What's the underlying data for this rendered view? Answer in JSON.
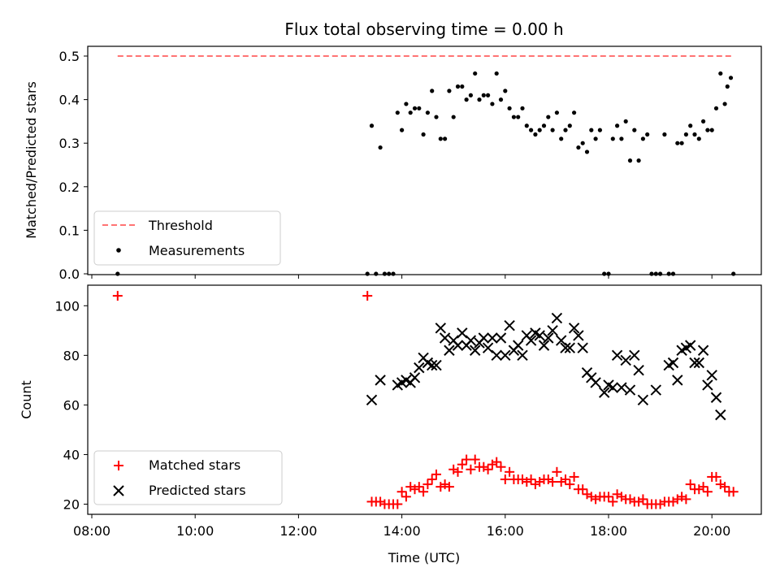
{
  "chart_data": [
    {
      "type": "scatter",
      "title": "Flux total observing time = 0.00 h",
      "xlabel": "",
      "ylabel": "Matched/Predicted stars",
      "ylim": [
        0,
        0.5
      ],
      "yticks": [
        "0.0",
        "0.1",
        "0.2",
        "0.3",
        "0.4",
        "0.5"
      ],
      "xlim": [
        "08:00",
        "21:00"
      ],
      "x_tick_labels_shown": false,
      "legend": {
        "position": "lower-left",
        "entries": [
          "Threshold",
          "Measurements"
        ]
      },
      "threshold": {
        "name": "Threshold",
        "value": 0.5,
        "x_start": "08:30",
        "x_end": "20:25",
        "color": "#ff7373",
        "style": "dashed"
      },
      "series": [
        {
          "name": "Measurements",
          "color": "#000000",
          "marker": "dot",
          "points": [
            [
              "08:30",
              0.0
            ],
            [
              "13:20",
              0.0
            ],
            [
              "13:25",
              0.34
            ],
            [
              "13:30",
              0.0
            ],
            [
              "13:35",
              0.29
            ],
            [
              "13:40",
              0.0
            ],
            [
              "13:45",
              0.0
            ],
            [
              "13:50",
              0.0
            ],
            [
              "13:55",
              0.37
            ],
            [
              "14:00",
              0.33
            ],
            [
              "14:05",
              0.39
            ],
            [
              "14:10",
              0.37
            ],
            [
              "14:15",
              0.38
            ],
            [
              "14:20",
              0.38
            ],
            [
              "14:25",
              0.32
            ],
            [
              "14:30",
              0.37
            ],
            [
              "14:35",
              0.42
            ],
            [
              "14:40",
              0.36
            ],
            [
              "14:45",
              0.31
            ],
            [
              "14:50",
              0.31
            ],
            [
              "14:55",
              0.42
            ],
            [
              "15:00",
              0.36
            ],
            [
              "15:05",
              0.43
            ],
            [
              "15:10",
              0.43
            ],
            [
              "15:15",
              0.4
            ],
            [
              "15:20",
              0.41
            ],
            [
              "15:25",
              0.46
            ],
            [
              "15:30",
              0.4
            ],
            [
              "15:35",
              0.41
            ],
            [
              "15:40",
              0.41
            ],
            [
              "15:45",
              0.39
            ],
            [
              "15:50",
              0.46
            ],
            [
              "15:55",
              0.4
            ],
            [
              "16:00",
              0.42
            ],
            [
              "16:05",
              0.38
            ],
            [
              "16:10",
              0.36
            ],
            [
              "16:15",
              0.36
            ],
            [
              "16:20",
              0.38
            ],
            [
              "16:25",
              0.34
            ],
            [
              "16:30",
              0.33
            ],
            [
              "16:35",
              0.32
            ],
            [
              "16:40",
              0.33
            ],
            [
              "16:45",
              0.34
            ],
            [
              "16:50",
              0.36
            ],
            [
              "16:55",
              0.33
            ],
            [
              "17:00",
              0.37
            ],
            [
              "17:05",
              0.31
            ],
            [
              "17:10",
              0.33
            ],
            [
              "17:15",
              0.34
            ],
            [
              "17:20",
              0.37
            ],
            [
              "17:25",
              0.29
            ],
            [
              "17:30",
              0.3
            ],
            [
              "17:35",
              0.28
            ],
            [
              "17:40",
              0.33
            ],
            [
              "17:45",
              0.31
            ],
            [
              "17:50",
              0.33
            ],
            [
              "17:55",
              0.0
            ],
            [
              "18:00",
              0.0
            ],
            [
              "18:05",
              0.31
            ],
            [
              "18:10",
              0.34
            ],
            [
              "18:15",
              0.31
            ],
            [
              "18:20",
              0.35
            ],
            [
              "18:25",
              0.26
            ],
            [
              "18:30",
              0.33
            ],
            [
              "18:35",
              0.26
            ],
            [
              "18:40",
              0.31
            ],
            [
              "18:45",
              0.32
            ],
            [
              "18:50",
              0.0
            ],
            [
              "18:55",
              0.0
            ],
            [
              "19:00",
              0.0
            ],
            [
              "19:05",
              0.32
            ],
            [
              "19:10",
              0.0
            ],
            [
              "19:15",
              0.0
            ],
            [
              "19:20",
              0.3
            ],
            [
              "19:25",
              0.3
            ],
            [
              "19:30",
              0.32
            ],
            [
              "19:35",
              0.34
            ],
            [
              "19:40",
              0.32
            ],
            [
              "19:45",
              0.31
            ],
            [
              "19:50",
              0.35
            ],
            [
              "19:55",
              0.33
            ],
            [
              "20:00",
              0.33
            ],
            [
              "20:05",
              0.38
            ],
            [
              "20:10",
              0.46
            ],
            [
              "20:15",
              0.39
            ],
            [
              "20:18",
              0.43
            ],
            [
              "20:22",
              0.45
            ],
            [
              "20:25",
              0.0
            ]
          ]
        }
      ]
    },
    {
      "type": "scatter",
      "xlabel": "Time (UTC)",
      "ylabel": "Count",
      "ylim": [
        15,
        108
      ],
      "yticks": [
        "20",
        "40",
        "60",
        "80",
        "100"
      ],
      "xlim": [
        "08:00",
        "21:00"
      ],
      "xticks": [
        "08:00",
        "10:00",
        "12:00",
        "14:00",
        "16:00",
        "18:00",
        "20:00"
      ],
      "legend": {
        "position": "lower-left",
        "entries": [
          "Matched stars",
          "Predicted stars"
        ]
      },
      "series": [
        {
          "name": "Matched stars",
          "color": "#ff0000",
          "marker": "plus",
          "points": [
            [
              "08:30",
              104
            ],
            [
              "13:20",
              104
            ],
            [
              "13:25",
              21
            ],
            [
              "13:30",
              21
            ],
            [
              "13:35",
              21
            ],
            [
              "13:40",
              20
            ],
            [
              "13:45",
              20
            ],
            [
              "13:50",
              20
            ],
            [
              "13:55",
              20
            ],
            [
              "14:00",
              25
            ],
            [
              "14:05",
              23
            ],
            [
              "14:10",
              27
            ],
            [
              "14:15",
              26
            ],
            [
              "14:20",
              27
            ],
            [
              "14:25",
              25
            ],
            [
              "14:30",
              28
            ],
            [
              "14:35",
              30
            ],
            [
              "14:40",
              32
            ],
            [
              "14:45",
              27
            ],
            [
              "14:50",
              28
            ],
            [
              "14:55",
              27
            ],
            [
              "15:00",
              34
            ],
            [
              "15:05",
              33
            ],
            [
              "15:10",
              36
            ],
            [
              "15:15",
              38
            ],
            [
              "15:20",
              34
            ],
            [
              "15:25",
              38
            ],
            [
              "15:30",
              35
            ],
            [
              "15:35",
              35
            ],
            [
              "15:40",
              34
            ],
            [
              "15:45",
              36
            ],
            [
              "15:50",
              37
            ],
            [
              "15:55",
              35
            ],
            [
              "16:00",
              30
            ],
            [
              "16:05",
              33
            ],
            [
              "16:10",
              30
            ],
            [
              "16:15",
              30
            ],
            [
              "16:20",
              30
            ],
            [
              "16:25",
              29
            ],
            [
              "16:30",
              30
            ],
            [
              "16:35",
              28
            ],
            [
              "16:40",
              29
            ],
            [
              "16:45",
              30
            ],
            [
              "16:50",
              30
            ],
            [
              "16:55",
              29
            ],
            [
              "17:00",
              33
            ],
            [
              "17:05",
              29
            ],
            [
              "17:10",
              30
            ],
            [
              "17:15",
              28
            ],
            [
              "17:20",
              31
            ],
            [
              "17:25",
              26
            ],
            [
              "17:30",
              26
            ],
            [
              "17:35",
              24
            ],
            [
              "17:40",
              23
            ],
            [
              "17:45",
              22
            ],
            [
              "17:50",
              23
            ],
            [
              "17:55",
              23
            ],
            [
              "18:00",
              23
            ],
            [
              "18:05",
              21
            ],
            [
              "18:10",
              24
            ],
            [
              "18:15",
              23
            ],
            [
              "18:20",
              22
            ],
            [
              "18:25",
              22
            ],
            [
              "18:30",
              21
            ],
            [
              "18:35",
              21
            ],
            [
              "18:40",
              22
            ],
            [
              "18:45",
              20
            ],
            [
              "18:50",
              20
            ],
            [
              "18:55",
              20
            ],
            [
              "19:00",
              20
            ],
            [
              "19:05",
              21
            ],
            [
              "19:10",
              21
            ],
            [
              "19:15",
              21
            ],
            [
              "19:20",
              22
            ],
            [
              "19:25",
              23
            ],
            [
              "19:30",
              22
            ],
            [
              "19:35",
              28
            ],
            [
              "19:40",
              26
            ],
            [
              "19:45",
              26
            ],
            [
              "19:50",
              27
            ],
            [
              "19:55",
              25
            ],
            [
              "20:00",
              31
            ],
            [
              "20:05",
              31
            ],
            [
              "20:10",
              28
            ],
            [
              "20:15",
              27
            ],
            [
              "20:20",
              25
            ],
            [
              "20:25",
              25
            ]
          ]
        },
        {
          "name": "Predicted stars",
          "color": "#000000",
          "marker": "x",
          "points": [
            [
              "13:25",
              62
            ],
            [
              "13:35",
              70
            ],
            [
              "13:55",
              68
            ],
            [
              "14:00",
              69
            ],
            [
              "14:05",
              70
            ],
            [
              "14:10",
              69
            ],
            [
              "14:15",
              71
            ],
            [
              "14:20",
              75
            ],
            [
              "14:25",
              79
            ],
            [
              "14:30",
              77
            ],
            [
              "14:35",
              76
            ],
            [
              "14:40",
              76
            ],
            [
              "14:45",
              91
            ],
            [
              "14:50",
              87
            ],
            [
              "14:55",
              82
            ],
            [
              "15:00",
              86
            ],
            [
              "15:05",
              84
            ],
            [
              "15:10",
              89
            ],
            [
              "15:15",
              84
            ],
            [
              "15:20",
              86
            ],
            [
              "15:25",
              82
            ],
            [
              "15:30",
              85
            ],
            [
              "15:35",
              87
            ],
            [
              "15:40",
              83
            ],
            [
              "15:45",
              87
            ],
            [
              "15:50",
              80
            ],
            [
              "15:55",
              87
            ],
            [
              "16:00",
              80
            ],
            [
              "16:05",
              92
            ],
            [
              "16:10",
              82
            ],
            [
              "16:15",
              84
            ],
            [
              "16:20",
              80
            ],
            [
              "16:25",
              88
            ],
            [
              "16:30",
              86
            ],
            [
              "16:35",
              89
            ],
            [
              "16:40",
              88
            ],
            [
              "16:45",
              84
            ],
            [
              "16:50",
              87
            ],
            [
              "16:55",
              90
            ],
            [
              "17:00",
              95
            ],
            [
              "17:05",
              86
            ],
            [
              "17:10",
              83
            ],
            [
              "17:15",
              83
            ],
            [
              "17:20",
              91
            ],
            [
              "17:25",
              88
            ],
            [
              "17:30",
              83
            ],
            [
              "17:35",
              73
            ],
            [
              "17:40",
              71
            ],
            [
              "17:45",
              69
            ],
            [
              "17:55",
              65
            ],
            [
              "18:00",
              68
            ],
            [
              "18:05",
              67
            ],
            [
              "18:10",
              80
            ],
            [
              "18:15",
              67
            ],
            [
              "18:20",
              78
            ],
            [
              "18:25",
              66
            ],
            [
              "18:30",
              80
            ],
            [
              "18:35",
              74
            ],
            [
              "18:40",
              62
            ],
            [
              "18:55",
              66
            ],
            [
              "19:10",
              76
            ],
            [
              "19:15",
              77
            ],
            [
              "19:20",
              70
            ],
            [
              "19:25",
              82
            ],
            [
              "19:30",
              83
            ],
            [
              "19:35",
              84
            ],
            [
              "19:40",
              77
            ],
            [
              "19:45",
              77
            ],
            [
              "19:50",
              82
            ],
            [
              "19:55",
              68
            ],
            [
              "20:00",
              72
            ],
            [
              "20:05",
              63
            ],
            [
              "20:10",
              56
            ]
          ]
        }
      ]
    }
  ]
}
